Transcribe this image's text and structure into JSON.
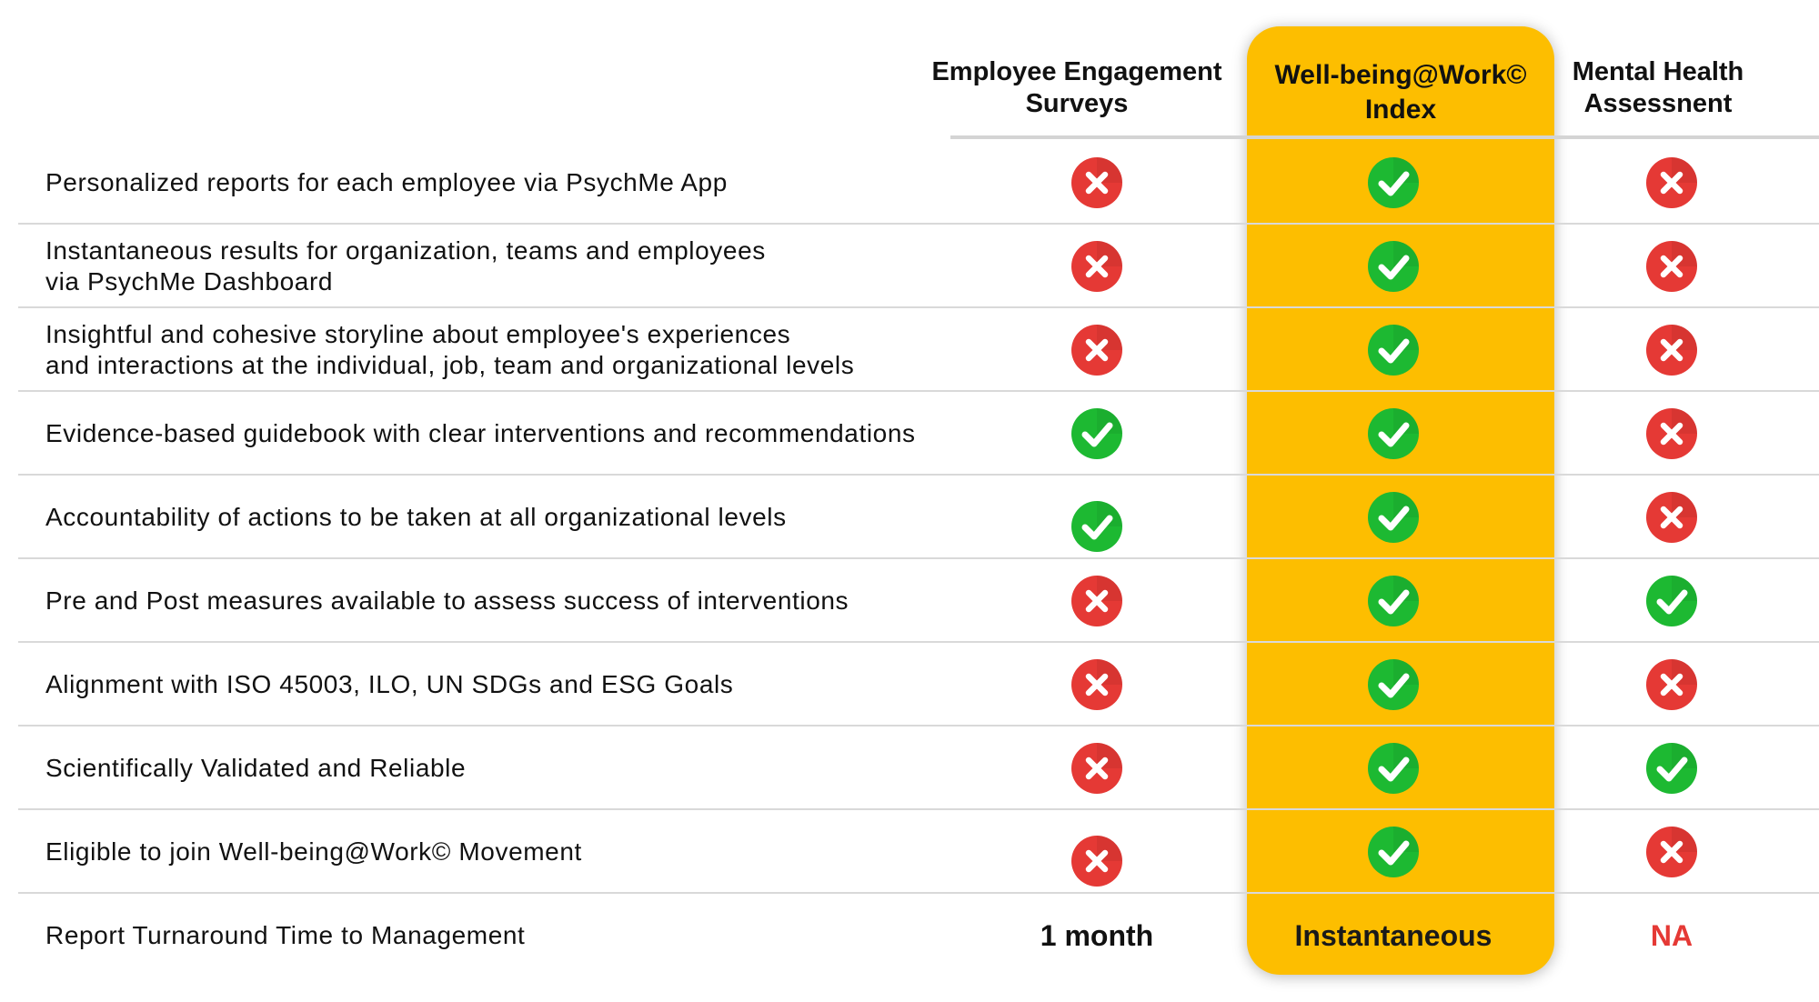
{
  "columns": [
    {
      "title": "Employee Engagement\nSurveys",
      "highlighted": false
    },
    {
      "title": "Well-being@Work©\nIndex",
      "highlighted": true
    },
    {
      "title": "Mental Health\nAssessnent",
      "highlighted": false
    }
  ],
  "rows": [
    {
      "feature": "Personalized reports for each employee via PsychMe App",
      "values": [
        "cross-icon",
        "check-icon",
        "cross-icon"
      ]
    },
    {
      "feature": "Instantaneous results for organization, teams and employees\nvia PsychMe Dashboard",
      "values": [
        "cross-icon",
        "check-icon",
        "cross-icon"
      ]
    },
    {
      "feature": "Insightful and cohesive storyline about employee's experiences\nand interactions at the individual, job, team and organizational levels",
      "values": [
        "cross-icon",
        "check-icon",
        "cross-icon"
      ]
    },
    {
      "feature": "Evidence-based guidebook with clear interventions and recommendations",
      "values": [
        "check-icon",
        "check-icon",
        "cross-icon"
      ]
    },
    {
      "feature": "Accountability of actions to be taken at all organizational levels",
      "values": [
        "check-icon",
        "check-icon",
        "cross-icon"
      ]
    },
    {
      "feature": "Pre and Post measures available to assess success of interventions",
      "values": [
        "cross-icon",
        "check-icon",
        "check-icon"
      ]
    },
    {
      "feature": "Alignment with ISO 45003, ILO, UN SDGs and ESG Goals",
      "values": [
        "cross-icon",
        "check-icon",
        "cross-icon"
      ]
    },
    {
      "feature": "Scientifically Validated and Reliable",
      "values": [
        "cross-icon",
        "check-icon",
        "check-icon"
      ]
    },
    {
      "feature": "Eligible to join Well-being@Work© Movement",
      "values": [
        "cross-icon",
        "check-icon",
        "cross-icon"
      ]
    }
  ],
  "turnaround": {
    "feature": "Report Turnaround Time to Management",
    "values": [
      "1 month",
      "Instantaneous",
      "NA"
    ],
    "value_colors": [
      "#111111",
      "#1a1a1a",
      "#E53935"
    ]
  },
  "colors": {
    "highlight": "#FDBE00",
    "check": "#1DB932",
    "cross": "#E53935",
    "na": "#E53935"
  }
}
